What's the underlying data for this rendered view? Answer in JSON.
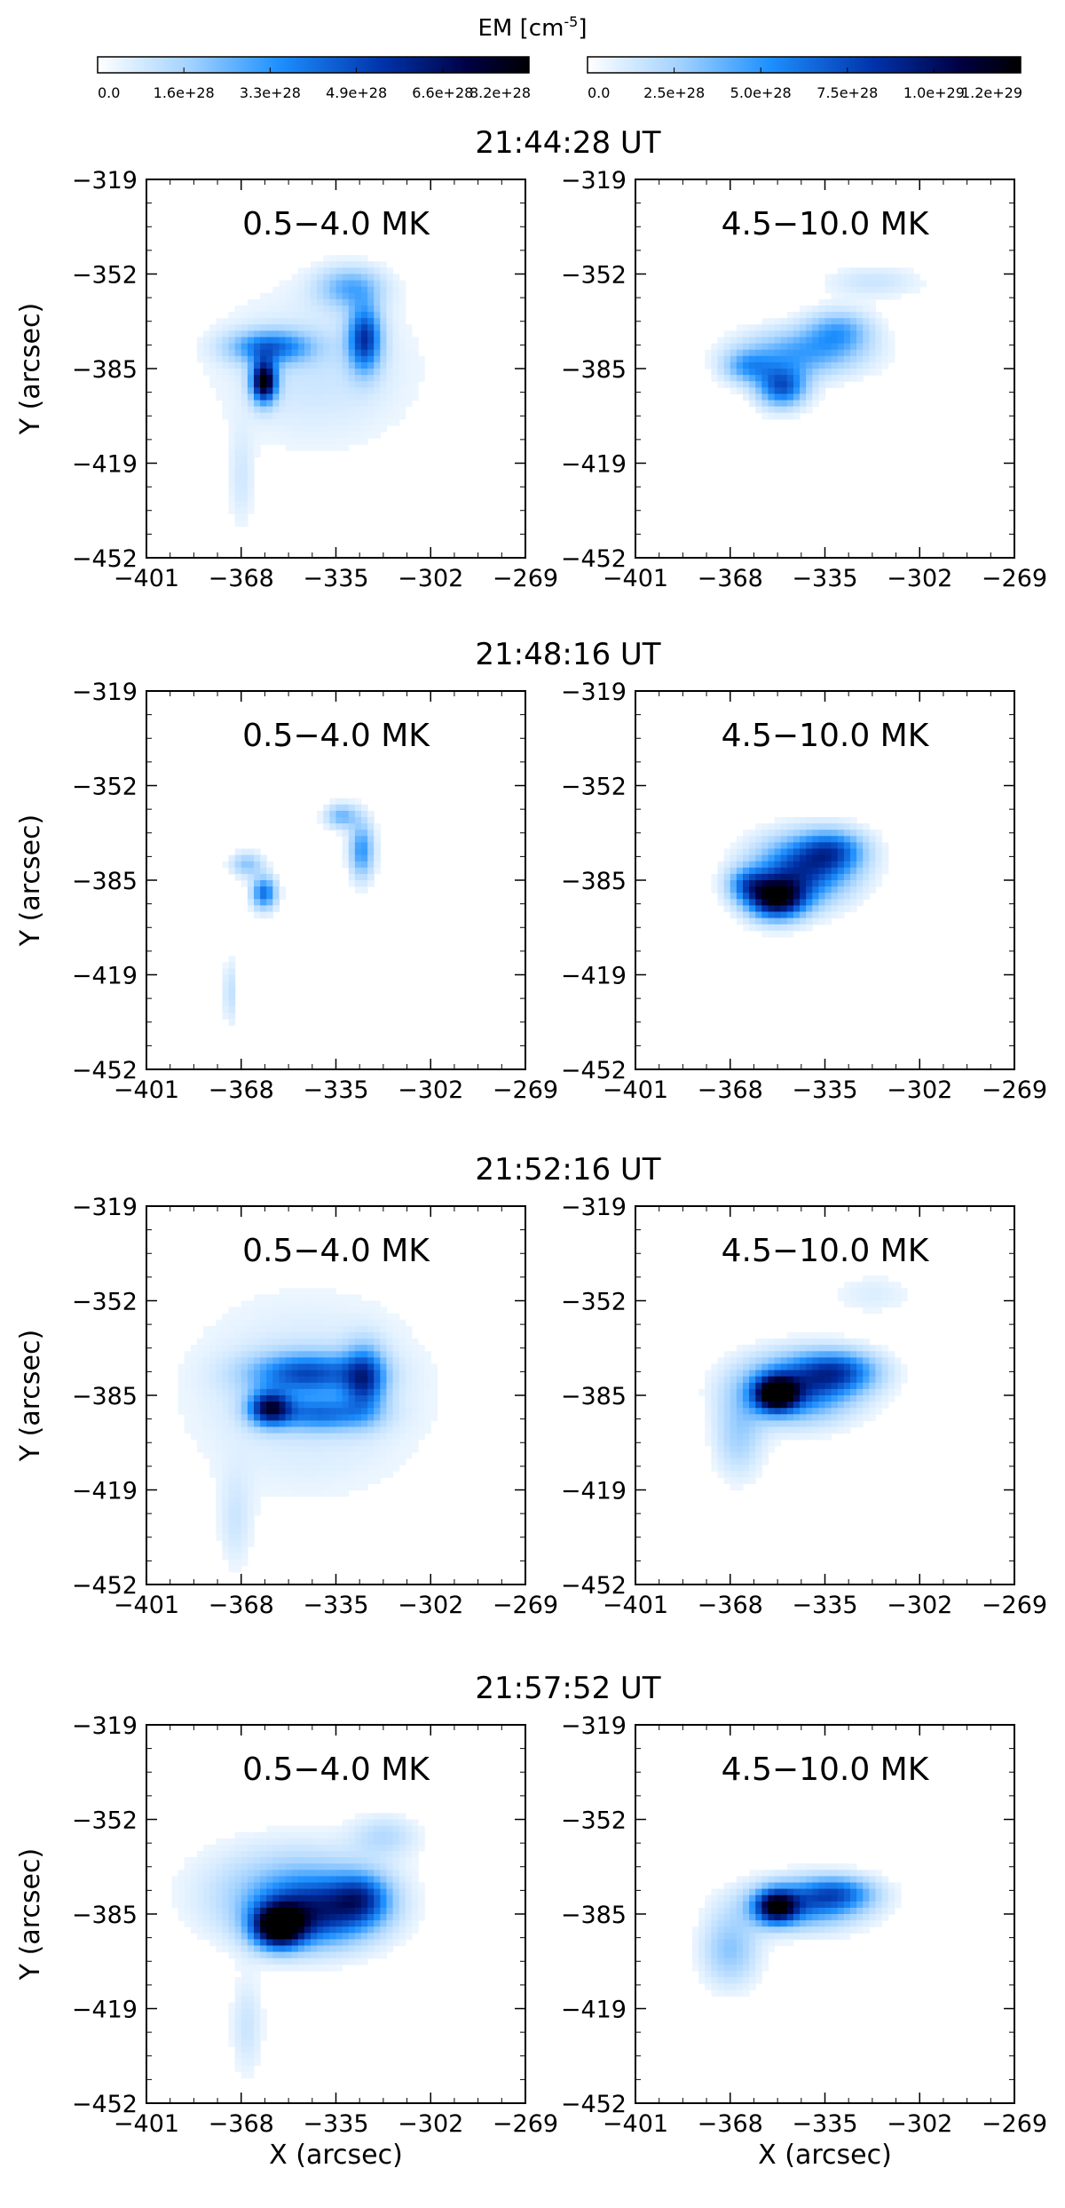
{
  "figure": {
    "colorbar_title": "EM [cm",
    "colorbar_unit_exp": "-5",
    "colorbar_unit_close": "]",
    "x_axis_label": "X (arcsec)",
    "y_axis_label": "Y (arcsec)"
  },
  "chart_data": {
    "type": "heatmap",
    "colorbars": [
      {
        "name": "0.5-4.0 MK",
        "range": [
          0.0,
          8.2e+28
        ],
        "tick_labels": [
          "0.0",
          "1.6e+28",
          "3.3e+28",
          "4.9e+28",
          "6.6e+28",
          "8.2e+28"
        ],
        "colormap": [
          "#ffffff",
          "#9fd0ff",
          "#1e90ff",
          "#0033aa",
          "#000044",
          "#000000"
        ]
      },
      {
        "name": "4.5-10.0 MK",
        "range": [
          0.0,
          1.2e+29
        ],
        "tick_labels": [
          "0.0",
          "2.5e+28",
          "5.0e+28",
          "7.5e+28",
          "1.0e+29",
          "1.2e+29"
        ],
        "colormap": [
          "#ffffff",
          "#9fd0ff",
          "#1e90ff",
          "#0033aa",
          "#000044",
          "#000000"
        ]
      }
    ],
    "x_ticks": [
      "-401",
      "-368",
      "-335",
      "-302",
      "-269"
    ],
    "y_ticks": [
      "-319",
      "-352",
      "-385",
      "-419",
      "-452"
    ],
    "xlim": [
      -401,
      -269
    ],
    "ylim": [
      -452,
      -319
    ],
    "temperature_bins": [
      "0.5-4.0 MK",
      "4.5-10.0 MK"
    ],
    "panels": [
      {
        "time": "21:44:28 UT",
        "cool": {
          "label": "0.5−4.0 MK",
          "blobs": [
            {
              "x": -360,
              "y": -390,
              "sx": 3,
              "sy": 5,
              "level": 0.95
            },
            {
              "x": -358,
              "y": -378,
              "sx": 10,
              "sy": 4,
              "level": 0.45
            },
            {
              "x": -325,
              "y": -375,
              "sx": 4,
              "sy": 8,
              "level": 0.6
            },
            {
              "x": -330,
              "y": -357,
              "sx": 8,
              "sy": 5,
              "level": 0.3
            },
            {
              "x": -342,
              "y": -385,
              "sx": 25,
              "sy": 20,
              "level": 0.12
            },
            {
              "x": -368,
              "y": -425,
              "sx": 3,
              "sy": 12,
              "level": 0.1
            }
          ]
        },
        "hot": {
          "label": "4.5−10.0 MK",
          "blobs": [
            {
              "x": -350,
              "y": -392,
              "sx": 6,
              "sy": 5,
              "level": 0.55
            },
            {
              "x": -343,
              "y": -380,
              "sx": 15,
              "sy": 6,
              "level": 0.35
            },
            {
              "x": -330,
              "y": -372,
              "sx": 8,
              "sy": 5,
              "level": 0.3
            },
            {
              "x": -318,
              "y": -355,
              "sx": 12,
              "sy": 4,
              "level": 0.12
            },
            {
              "x": -362,
              "y": -385,
              "sx": 6,
              "sy": 4,
              "level": 0.3
            }
          ]
        }
      },
      {
        "time": "21:48:16 UT",
        "cool": {
          "label": "0.5−4.0 MK",
          "blobs": [
            {
              "x": -360,
              "y": -390,
              "sx": 3,
              "sy": 4,
              "level": 0.5
            },
            {
              "x": -366,
              "y": -380,
              "sx": 4,
              "sy": 3,
              "level": 0.25
            },
            {
              "x": -326,
              "y": -375,
              "sx": 3,
              "sy": 7,
              "level": 0.4
            },
            {
              "x": -333,
              "y": -363,
              "sx": 4,
              "sy": 3,
              "level": 0.3
            },
            {
              "x": -372,
              "y": -425,
              "sx": 1.5,
              "sy": 8,
              "level": 0.15
            }
          ]
        },
        "hot": {
          "label": "4.5−10.0 MK",
          "blobs": [
            {
              "x": -352,
              "y": -392,
              "sx": 7,
              "sy": 5,
              "level": 0.85
            },
            {
              "x": -343,
              "y": -382,
              "sx": 12,
              "sy": 8,
              "level": 0.6
            },
            {
              "x": -332,
              "y": -375,
              "sx": 8,
              "sy": 5,
              "level": 0.4
            },
            {
              "x": -362,
              "y": -387,
              "sx": 5,
              "sy": 4,
              "level": 0.35
            }
          ]
        }
      },
      {
        "time": "21:52:16 UT",
        "cool": {
          "label": "0.5−4.0 MK",
          "blobs": [
            {
              "x": -358,
              "y": -390,
              "sx": 5,
              "sy": 4,
              "level": 0.7
            },
            {
              "x": -345,
              "y": -378,
              "sx": 14,
              "sy": 5,
              "level": 0.5
            },
            {
              "x": -325,
              "y": -380,
              "sx": 5,
              "sy": 8,
              "level": 0.5
            },
            {
              "x": -340,
              "y": -392,
              "sx": 12,
              "sy": 4,
              "level": 0.4
            },
            {
              "x": -345,
              "y": -385,
              "sx": 30,
              "sy": 25,
              "level": 0.12
            },
            {
              "x": -370,
              "y": -430,
              "sx": 4,
              "sy": 12,
              "level": 0.1
            }
          ]
        },
        "hot": {
          "label": "4.5−10.0 MK",
          "blobs": [
            {
              "x": -352,
              "y": -385,
              "sx": 5,
              "sy": 4,
              "level": 0.9
            },
            {
              "x": -345,
              "y": -383,
              "sx": 14,
              "sy": 8,
              "level": 0.55
            },
            {
              "x": -330,
              "y": -377,
              "sx": 10,
              "sy": 5,
              "level": 0.45
            },
            {
              "x": -365,
              "y": -400,
              "sx": 6,
              "sy": 10,
              "level": 0.2
            },
            {
              "x": -318,
              "y": -350,
              "sx": 10,
              "sy": 5,
              "level": 0.08
            }
          ]
        }
      },
      {
        "time": "21:57:52 UT",
        "cool": {
          "label": "0.5−4.0 MK",
          "blobs": [
            {
              "x": -355,
              "y": -390,
              "sx": 6,
              "sy": 5,
              "level": 0.95
            },
            {
              "x": -342,
              "y": -385,
              "sx": 14,
              "sy": 8,
              "level": 0.55
            },
            {
              "x": -326,
              "y": -380,
              "sx": 7,
              "sy": 6,
              "level": 0.4
            },
            {
              "x": -350,
              "y": -378,
              "sx": 22,
              "sy": 12,
              "level": 0.25
            },
            {
              "x": -318,
              "y": -358,
              "sx": 8,
              "sy": 5,
              "level": 0.15
            },
            {
              "x": -366,
              "y": -425,
              "sx": 4,
              "sy": 12,
              "level": 0.12
            }
          ]
        },
        "hot": {
          "label": "4.5−10.0 MK",
          "blobs": [
            {
              "x": -352,
              "y": -383,
              "sx": 5,
              "sy": 4,
              "level": 0.75
            },
            {
              "x": -342,
              "y": -382,
              "sx": 14,
              "sy": 6,
              "level": 0.45
            },
            {
              "x": -330,
              "y": -378,
              "sx": 9,
              "sy": 4,
              "level": 0.35
            },
            {
              "x": -368,
              "y": -398,
              "sx": 7,
              "sy": 9,
              "level": 0.25
            }
          ]
        }
      }
    ]
  }
}
